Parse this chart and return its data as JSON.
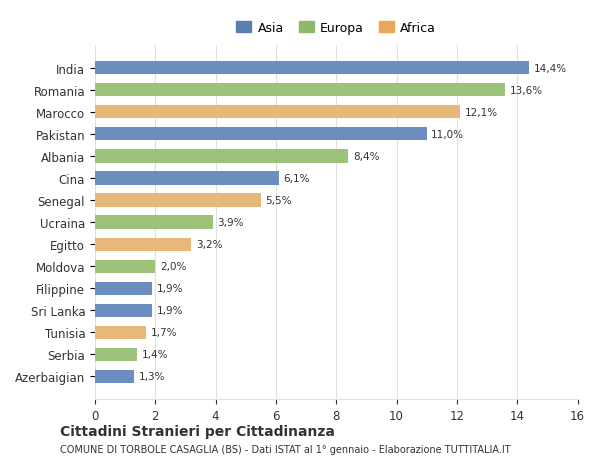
{
  "categories": [
    "India",
    "Romania",
    "Marocco",
    "Pakistan",
    "Albania",
    "Cina",
    "Senegal",
    "Ucraina",
    "Egitto",
    "Moldova",
    "Filippine",
    "Sri Lanka",
    "Tunisia",
    "Serbia",
    "Azerbaigian"
  ],
  "values": [
    14.4,
    13.6,
    12.1,
    11.0,
    8.4,
    6.1,
    5.5,
    3.9,
    3.2,
    2.0,
    1.9,
    1.9,
    1.7,
    1.4,
    1.3
  ],
  "labels": [
    "14,4%",
    "13,6%",
    "12,1%",
    "11,0%",
    "8,4%",
    "6,1%",
    "5,5%",
    "3,9%",
    "3,2%",
    "2,0%",
    "1,9%",
    "1,9%",
    "1,7%",
    "1,4%",
    "1,3%"
  ],
  "continents": [
    "Asia",
    "Europa",
    "Africa",
    "Asia",
    "Europa",
    "Asia",
    "Africa",
    "Europa",
    "Africa",
    "Europa",
    "Asia",
    "Asia",
    "Africa",
    "Europa",
    "Asia"
  ],
  "colors": {
    "Asia": "#6c8ebf",
    "Europa": "#9dc37a",
    "Africa": "#e8b87a"
  },
  "legend_colors": {
    "Asia": "#5b7db1",
    "Europa": "#8fb86a",
    "Africa": "#e8a85a"
  },
  "title": "Cittadini Stranieri per Cittadinanza",
  "subtitle": "COMUNE DI TORBOLE CASAGLIA (BS) - Dati ISTAT al 1° gennaio - Elaborazione TUTTITALIA.IT",
  "xlim": [
    0,
    16
  ],
  "xticks": [
    0,
    2,
    4,
    6,
    8,
    10,
    12,
    14,
    16
  ],
  "bar_height": 0.6,
  "background_color": "#ffffff",
  "grid_color": "#e0e0e0",
  "text_color": "#333333"
}
